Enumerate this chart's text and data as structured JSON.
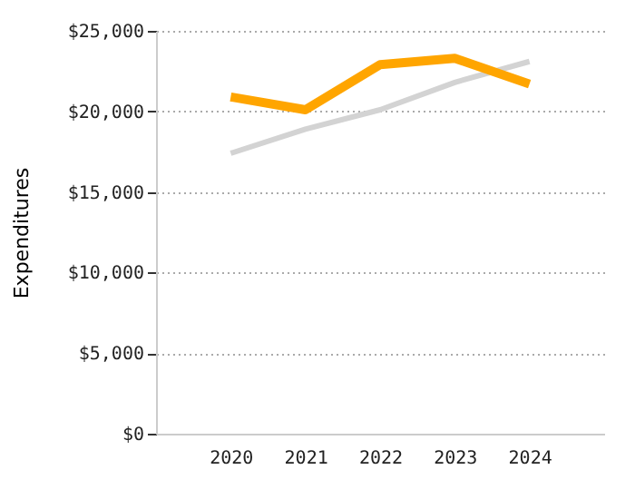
{
  "chart_data": {
    "type": "line",
    "ylabel": "Expenditures",
    "categories": [
      "2020",
      "2021",
      "2022",
      "2023",
      "2024"
    ],
    "series": [
      {
        "color": "#d3d3d3",
        "values": [
          17400,
          18900,
          20100,
          21800,
          23100
        ]
      },
      {
        "color": "#ffa500",
        "values": [
          20900,
          20100,
          22900,
          23300,
          21700
        ]
      }
    ],
    "ylim": [
      0,
      25000
    ],
    "yticks": [
      {
        "value": 0,
        "label": "$0"
      },
      {
        "value": 5000,
        "label": "$5,000"
      },
      {
        "value": 10000,
        "label": "$10,000"
      },
      {
        "value": 15000,
        "label": "$15,000"
      },
      {
        "value": 20000,
        "label": "$20,000"
      },
      {
        "value": 25000,
        "label": "$25,000"
      }
    ],
    "grid": "y",
    "marker": "none",
    "line_style": "solid"
  }
}
